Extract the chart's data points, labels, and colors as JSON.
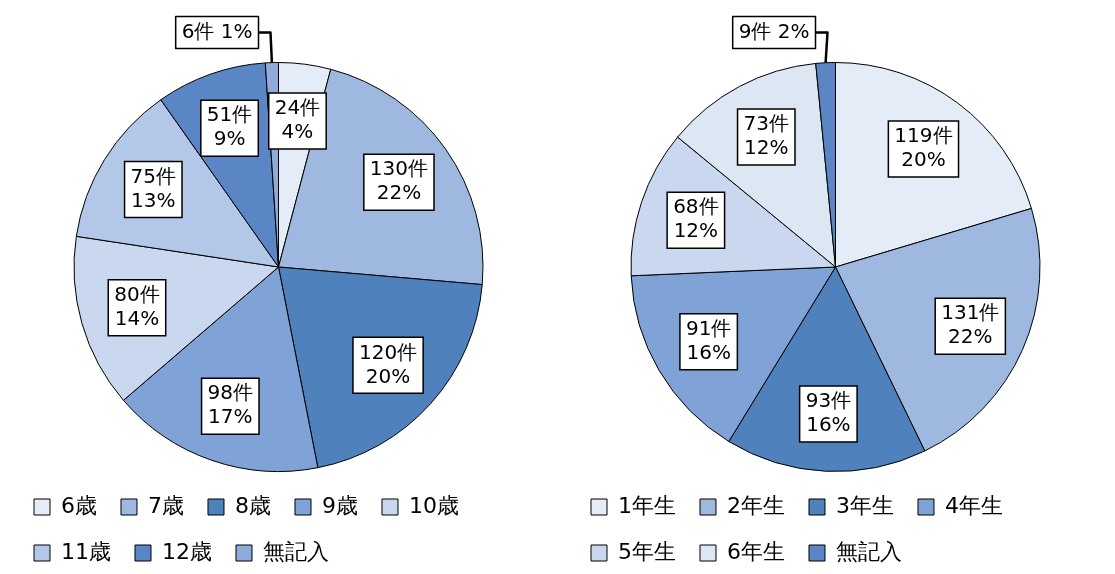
{
  "chart_data": [
    {
      "type": "pie",
      "categories": [
        "6歳",
        "7歳",
        "8歳",
        "9歳",
        "10歳",
        "11歳",
        "12歳",
        "無記入"
      ],
      "values": [
        24,
        130,
        120,
        98,
        80,
        75,
        51,
        6
      ],
      "colors": [
        "#e4ecf7",
        "#9fb8e0",
        "#4f81bd",
        "#7fa3d6",
        "#c9d8ee",
        "#b3c8e8",
        "#5b86c5",
        "#8eabd9"
      ],
      "value_labels": [
        "24件\n4%",
        "130件\n22%",
        "120件\n20%",
        "98件\n17%",
        "80件\n14%",
        "75件\n13%",
        "51件\n9%",
        "6件 1%"
      ],
      "legend": "bottom"
    },
    {
      "type": "pie",
      "categories": [
        "1年生",
        "2年生",
        "3年生",
        "4年生",
        "5年生",
        "6年生",
        "無記入"
      ],
      "values": [
        119,
        131,
        93,
        91,
        68,
        73,
        9
      ],
      "colors": [
        "#e4ecf7",
        "#9fb8e0",
        "#4f81bd",
        "#7fa3d6",
        "#c9d8ee",
        "#dde7f4",
        "#5b86c5"
      ],
      "value_labels": [
        "119件\n20%",
        "131件\n22%",
        "93件\n16%",
        "91件\n16%",
        "68件\n12%",
        "73件\n12%",
        "9件 2%"
      ],
      "legend": "bottom"
    }
  ]
}
